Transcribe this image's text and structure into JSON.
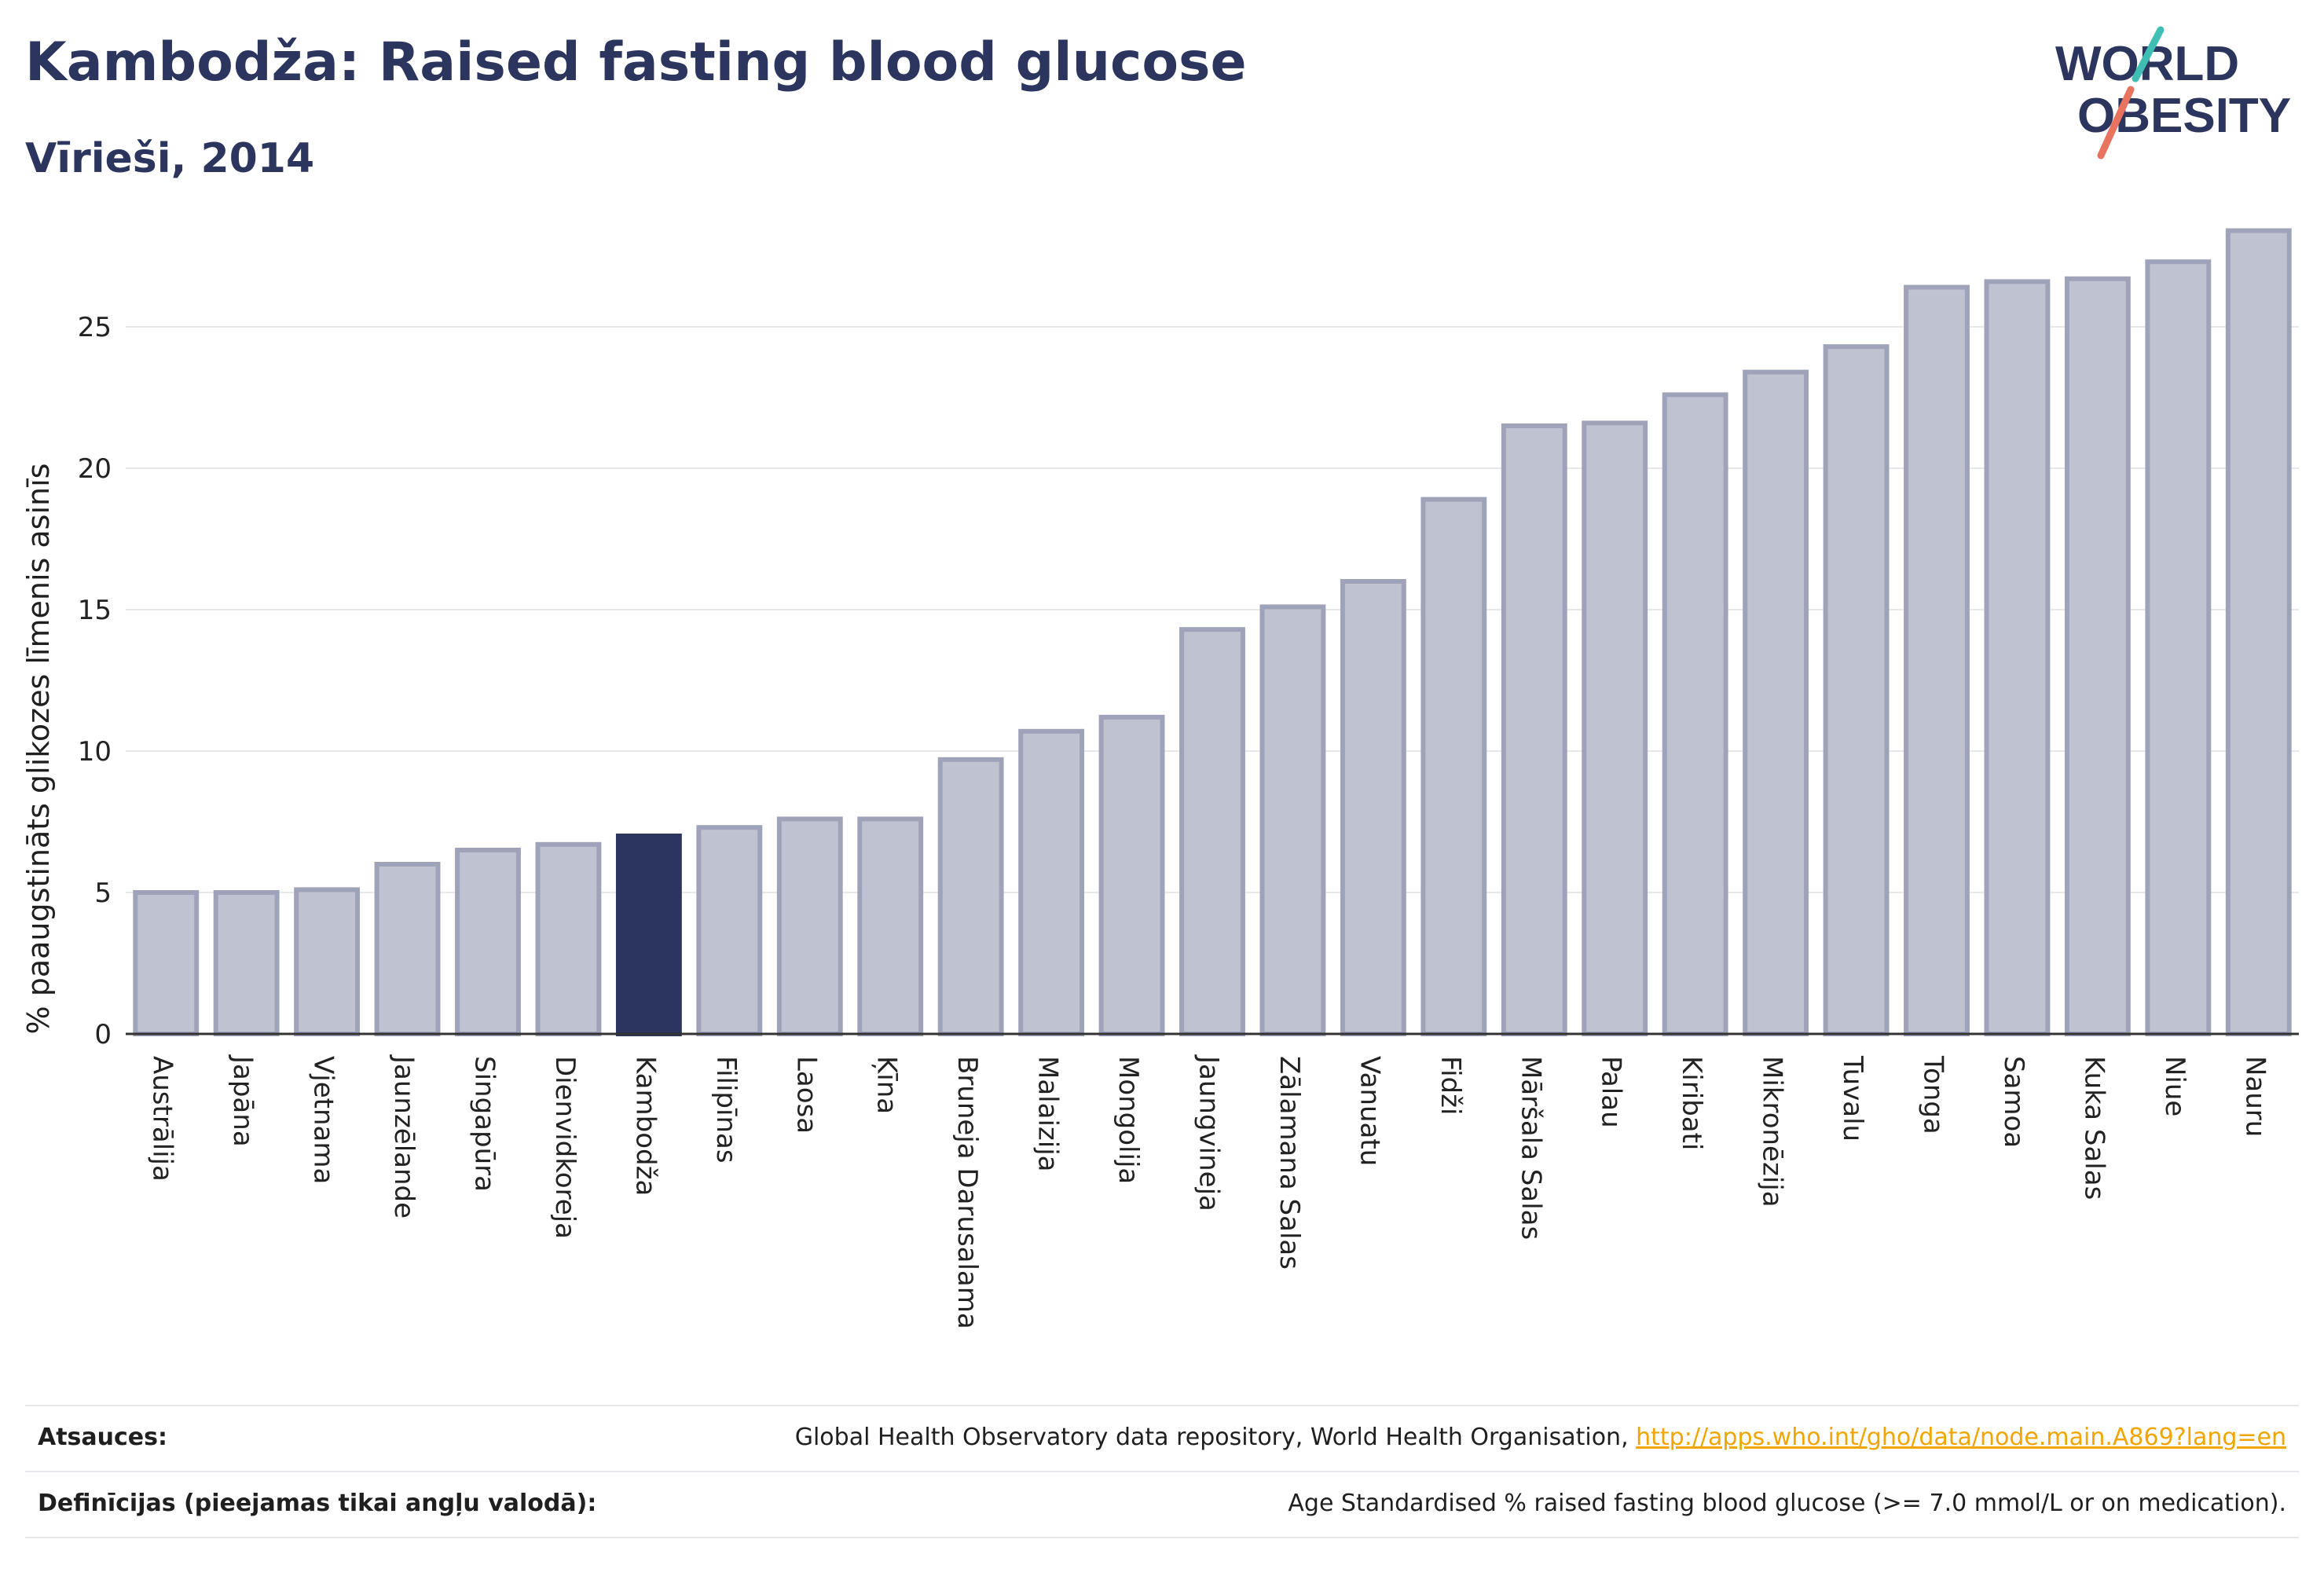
{
  "header": {
    "title": "Kambodža: Raised fasting blood glucose",
    "subtitle": "Vīrieši, 2014"
  },
  "logo": {
    "line1": "WORLD",
    "line2": "OBESITY"
  },
  "colors": {
    "bar": "#bfc2d0",
    "bar_stroke": "#9ea3b9",
    "highlight": "#2b355e",
    "grid": "#e8e8ec",
    "axis": "#333333",
    "link": "#f0a500"
  },
  "chart_data": {
    "type": "bar",
    "ylabel": "% paaugstināts glikozes līmenis asinīs",
    "ylim": [
      0,
      28.5
    ],
    "yticks": [
      0,
      5,
      10,
      15,
      20,
      25
    ],
    "grid": true,
    "highlight": "Kambodža",
    "categories": [
      "Austrālija",
      "Japāna",
      "Vjetnama",
      "Jaunzēlande",
      "Singapūra",
      "Dienvidkoreja",
      "Kambodža",
      "Filipīnas",
      "Laosa",
      "Ķīna",
      "Bruneja Darusalama",
      "Malaizija",
      "Mongolija",
      "Jaungvineja",
      "Zālamana Salas",
      "Vanuatu",
      "Fidži",
      "Māršala Salas",
      "Palau",
      "Kiribati",
      "Mikronēzija",
      "Tuvalu",
      "Tonga",
      "Samoa",
      "Kuka Salas",
      "Niue",
      "Nauru"
    ],
    "values": [
      5.0,
      5.0,
      5.1,
      6.0,
      6.5,
      6.7,
      7.0,
      7.3,
      7.6,
      7.6,
      9.7,
      10.7,
      11.2,
      14.3,
      15.1,
      16.0,
      18.9,
      21.5,
      21.6,
      22.6,
      23.4,
      24.3,
      26.4,
      26.6,
      26.7,
      27.3,
      28.4
    ]
  },
  "footer": {
    "sources_label": "Atsauces:",
    "sources_text": "Global Health Observatory data repository, World Health Organisation, ",
    "sources_link": "http://apps.who.int/gho/data/node.main.A869?lang=en",
    "definitions_label": "Definīcijas (pieejamas tikai angļu valodā):",
    "definitions_text": "Age Standardised % raised fasting blood glucose (>= 7.0 mmol/L or on medication)."
  }
}
